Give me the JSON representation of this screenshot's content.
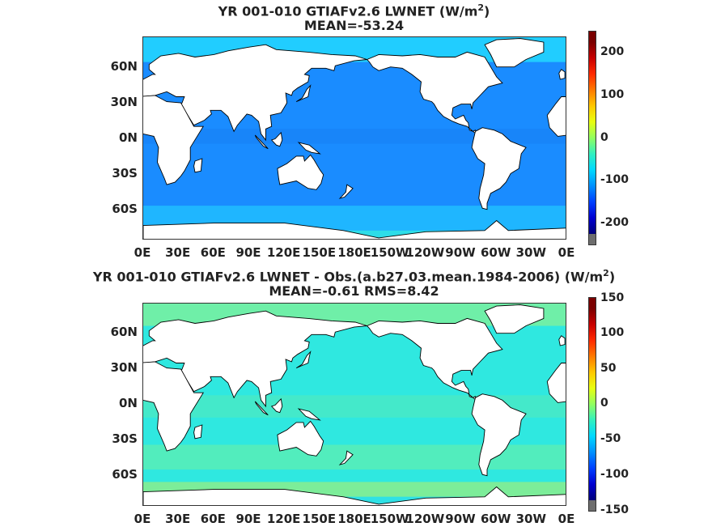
{
  "top_panel": {
    "title_line1_prefix": "YR 001-010 GTIAFv2.6  LWNET (W/m",
    "title_sup": "2",
    "title_line1_suffix": ")",
    "title_line2": "MEAN=-53.24",
    "ocean_color": "#1a8cff",
    "colorbar_ticks": [
      "200",
      "100",
      "0",
      "-100",
      "-200"
    ]
  },
  "bottom_panel": {
    "title_line1_prefix": "YR 001-010 GTIAFv2.6 LWNET - Obs.(a.b27.03.mean.1984-2006) (W/m",
    "title_sup": "2",
    "title_line1_suffix": ")",
    "title_line2": "MEAN=-0.61 RMS=8.42",
    "ocean_color": "#2fe8e0",
    "colorbar_ticks": [
      "150",
      "100",
      "50",
      "0",
      "-50",
      "-100",
      "-150"
    ]
  },
  "lat_labels": [
    "60N",
    "30N",
    "0N",
    "30S",
    "60S"
  ],
  "lon_labels": [
    "0E",
    "30E",
    "60E",
    "90E",
    "120E",
    "150E",
    "180E",
    "150W",
    "120W",
    "90W",
    "60W",
    "30W",
    "0E"
  ],
  "colormap": [
    "#7a0000",
    "#c80000",
    "#ff2a00",
    "#ff7a00",
    "#ffc800",
    "#e8ff10",
    "#90ff60",
    "#30f0c0",
    "#00d8ff",
    "#0090ff",
    "#0040ff",
    "#0000d0",
    "#00007a"
  ],
  "colors": {
    "land": "#ffffff",
    "coast": "#000000",
    "outofrange_high": "#c8c8c8",
    "outofrange_low": "#6e6e6e"
  }
}
